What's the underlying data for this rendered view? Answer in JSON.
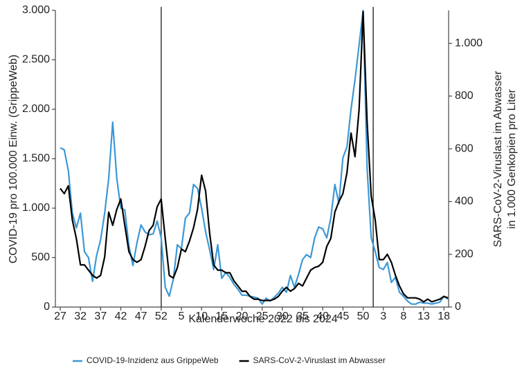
{
  "chart_data": {
    "type": "line",
    "xlabel": "Kalenderwoche 2022 bis 2024",
    "ylabel": "COVID-19 pro 100.000 Einw. (GrippeWeb)",
    "y2label": [
      "SARS-CoV-2-Viruslast im Abwasser",
      "in 1.000 Genkopien pro Liter"
    ],
    "categories": [
      "27",
      null,
      null,
      null,
      null,
      "32",
      null,
      null,
      null,
      null,
      "37",
      null,
      null,
      null,
      null,
      "42",
      null,
      null,
      null,
      null,
      "47",
      null,
      null,
      null,
      null,
      "52",
      null,
      null,
      null,
      null,
      "5",
      null,
      null,
      null,
      null,
      "10",
      null,
      null,
      null,
      null,
      "15",
      null,
      null,
      null,
      null,
      "20",
      null,
      null,
      null,
      null,
      "25",
      null,
      null,
      null,
      null,
      "30",
      null,
      null,
      null,
      null,
      "35",
      null,
      null,
      null,
      null,
      "40",
      null,
      null,
      null,
      null,
      "45",
      null,
      null,
      null,
      null,
      "50",
      null,
      null,
      null,
      null,
      "3",
      null,
      null,
      null,
      null,
      "8",
      null,
      null,
      null,
      null,
      "13",
      null,
      null,
      null,
      null,
      "18",
      null
    ],
    "ylim": [
      0,
      3000
    ],
    "yticks": [
      0,
      500,
      {
        "value": 1000,
        "label": "1.000"
      },
      {
        "value": 1500,
        "label": "1.500"
      },
      {
        "value": 2000,
        "label": "2.000"
      },
      {
        "value": 2500,
        "label": "2.500"
      },
      {
        "value": 3000,
        "label": "3.000"
      }
    ],
    "y2lim": [
      0,
      1125
    ],
    "y2ticks": [
      0,
      200,
      400,
      600,
      800,
      {
        "value": 1000,
        "label": "1.000"
      }
    ],
    "series": [
      {
        "name": "COVID-19-Inzidenz aus GrippeWeb",
        "color": "#3a98d6",
        "values": [
          1610,
          1590,
          1380,
          950,
          800,
          950,
          560,
          500,
          260,
          520,
          680,
          950,
          1300,
          1870,
          1300,
          1000,
          980,
          620,
          420,
          650,
          830,
          760,
          730,
          740,
          870,
          700,
          200,
          110,
          280,
          630,
          590,
          900,
          950,
          1240,
          1200,
          1000,
          760,
          580,
          380,
          630,
          290,
          350,
          300,
          230,
          180,
          120,
          120,
          110,
          100,
          90,
          30,
          90,
          60,
          100,
          140,
          200,
          150,
          320,
          200,
          330,
          480,
          530,
          500,
          700,
          810,
          790,
          700,
          900,
          1240,
          1050,
          1510,
          1620,
          2000,
          2300,
          2650,
          3000,
          1400,
          700,
          560,
          400,
          380,
          450,
          250,
          300,
          150,
          110,
          60,
          30,
          30,
          50,
          40,
          40,
          30,
          40,
          50,
          110,
          80
        ]
      },
      {
        "name": "SARS-CoV-2-Viruslast im Abwasser",
        "color": "#000000",
        "axis": "y2",
        "values": [
          450,
          430,
          460,
          330,
          260,
          160,
          160,
          140,
          120,
          110,
          120,
          190,
          360,
          310,
          370,
          410,
          310,
          210,
          180,
          170,
          180,
          230,
          290,
          310,
          380,
          410,
          260,
          120,
          110,
          150,
          220,
          210,
          250,
          300,
          370,
          500,
          440,
          280,
          160,
          140,
          140,
          130,
          130,
          100,
          80,
          60,
          60,
          40,
          30,
          30,
          25,
          25,
          25,
          30,
          40,
          60,
          75,
          60,
          70,
          90,
          80,
          110,
          140,
          150,
          155,
          170,
          230,
          260,
          360,
          400,
          430,
          510,
          660,
          570,
          750,
          1120,
          700,
          420,
          330,
          180,
          180,
          200,
          170,
          120,
          80,
          50,
          35,
          35,
          35,
          30,
          20,
          30,
          20,
          25,
          30,
          40,
          35
        ]
      }
    ]
  }
}
